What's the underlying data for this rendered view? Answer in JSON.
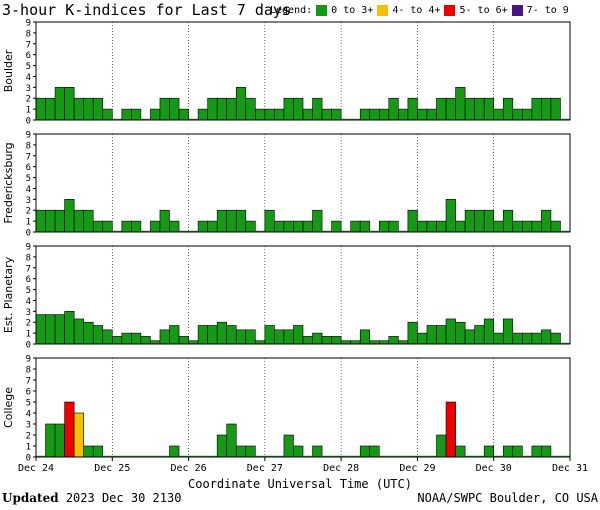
{
  "title": "3-hour K-indices for Last 7 days",
  "legend": {
    "label": "Legend:",
    "items": [
      {
        "label": "0 to 3+",
        "color": "#149a14"
      },
      {
        "label": "4- to 4+",
        "color": "#f5c000"
      },
      {
        "label": "5- to 6+",
        "color": "#ee0000"
      },
      {
        "label": "7- to 9",
        "color": "#4a1485"
      }
    ]
  },
  "chart_data": [
    {
      "type": "bar",
      "station": "Boulder",
      "ylim": [
        0,
        9
      ],
      "values": [
        2,
        2,
        3,
        3,
        2,
        2,
        2,
        1,
        0,
        1,
        1,
        0,
        1,
        2,
        2,
        1,
        0,
        1,
        2,
        2,
        2,
        3,
        2,
        1,
        1,
        1,
        2,
        2,
        1,
        2,
        1,
        1,
        0,
        0,
        1,
        1,
        1,
        2,
        1,
        2,
        1,
        1,
        2,
        2,
        3,
        2,
        2,
        2,
        1,
        2,
        1,
        1,
        2,
        2,
        2,
        0
      ]
    },
    {
      "type": "bar",
      "station": "Fredericksburg",
      "ylim": [
        0,
        9
      ],
      "values": [
        2,
        2,
        2,
        3,
        2,
        2,
        1,
        1,
        0,
        1,
        1,
        0,
        1,
        2,
        1,
        0,
        0,
        1,
        1,
        2,
        2,
        2,
        1,
        0,
        2,
        1,
        1,
        1,
        1,
        2,
        0,
        1,
        0,
        1,
        1,
        0,
        1,
        1,
        0,
        2,
        1,
        1,
        1,
        3,
        1,
        2,
        2,
        2,
        1,
        2,
        1,
        1,
        1,
        2,
        1,
        0
      ]
    },
    {
      "type": "bar",
      "station": "Est. Planetary",
      "ylim": [
        0,
        9
      ],
      "values": [
        2.7,
        2.7,
        2.7,
        3,
        2.3,
        2,
        1.7,
        1.3,
        0.7,
        1,
        1,
        0.7,
        0.3,
        1.3,
        1.7,
        0.7,
        0.3,
        1.7,
        1.7,
        2,
        1.7,
        1.3,
        1.3,
        0.3,
        1.7,
        1.3,
        1.3,
        1.7,
        0.7,
        1,
        0.7,
        0.7,
        0.3,
        0.3,
        1.3,
        0.3,
        0.3,
        0.7,
        0.3,
        2,
        1,
        1.7,
        1.7,
        2.3,
        2,
        1.3,
        1.7,
        2.3,
        1,
        2.3,
        1,
        1,
        1,
        1.3,
        1,
        0
      ]
    },
    {
      "type": "bar",
      "station": "College",
      "ylim": [
        0,
        9
      ],
      "values": [
        0,
        3,
        3,
        5,
        4,
        1,
        1,
        0,
        0,
        0,
        0,
        0,
        0,
        0,
        1,
        0,
        0,
        0,
        0,
        2,
        3,
        1,
        1,
        0,
        0,
        0,
        2,
        1,
        0,
        1,
        0,
        0,
        0,
        0,
        1,
        1,
        0,
        0,
        0,
        0,
        0,
        0,
        2,
        5,
        1,
        0,
        0,
        1,
        0,
        1,
        1,
        0,
        1,
        1,
        0,
        0
      ]
    }
  ],
  "yticks": [
    "0",
    "1",
    "2",
    "3",
    "4",
    "5",
    "6",
    "7",
    "8",
    "9"
  ],
  "x_tick_labels": [
    "Dec 24",
    "Dec 25",
    "Dec 26",
    "Dec 27",
    "Dec 28",
    "Dec 29",
    "Dec 30",
    "Dec 31"
  ],
  "xlabel": "Coordinate Universal Time (UTC)",
  "footer": {
    "updated_label": "Updated",
    "updated_value": "2023 Dec 30 2130",
    "credit": "NOAA/SWPC Boulder, CO USA"
  }
}
